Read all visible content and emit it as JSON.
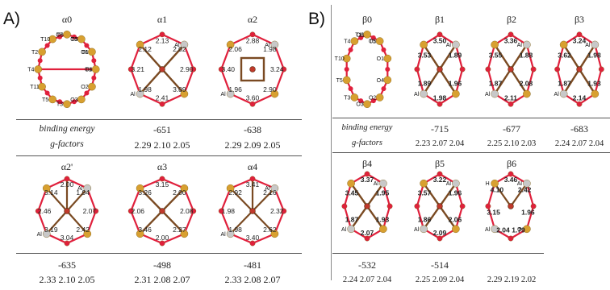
{
  "panel_a": {
    "label": "A)",
    "structures": [
      {
        "title": "α0",
        "distances": [],
        "sites": [
          "O6",
          "O5",
          "O1",
          "O4",
          "O2",
          "O3",
          "T3",
          "T5",
          "T11",
          "T4",
          "T2",
          "T10",
          "T7",
          "T3",
          "T8",
          "T1"
        ],
        "binding_energy": "",
        "g_factors": ""
      },
      {
        "title": "α1",
        "distances": [
          "2.13",
          "2.02",
          "2.90",
          "3.09",
          "2.41",
          "1.98",
          "3.21",
          "2.12"
        ],
        "sites": [
          "Al",
          "Al"
        ],
        "binding_energy": "-651",
        "g_factors": "2.29  2.10  2.05"
      },
      {
        "title": "α2",
        "distances": [
          "2.88",
          "1.98",
          "3.24",
          "2.90",
          "3.60",
          "1.96",
          "3.40",
          "2.06"
        ],
        "sites": [
          "Al",
          "Al"
        ],
        "binding_energy": "-638",
        "g_factors": "2.29  2.09  2.05"
      },
      {
        "title": "α2'",
        "distances": [
          "2.00",
          "1.94",
          "2.07",
          "2.42",
          "3.04",
          "3.19",
          "2.46",
          "3.14"
        ],
        "sites": [
          "Al",
          "Al"
        ],
        "binding_energy": "-635",
        "g_factors": "2.33  2.10  2.05"
      },
      {
        "title": "α3",
        "distances": [
          "3.15",
          "2.00",
          "2.08",
          "2.27",
          "2.00",
          "3.46",
          "2.06",
          "3.26"
        ],
        "sites": [],
        "binding_energy": "-498",
        "g_factors": "2.31  2.08  2.07"
      },
      {
        "title": "α4",
        "distances": [
          "3.41",
          "2.16",
          "2.32",
          "2.62",
          "3.40",
          "1.98",
          "1.98",
          "2.92"
        ],
        "sites": [
          "Al",
          "Al"
        ],
        "binding_energy": "-481",
        "g_factors": "2.33  2.08  2.07"
      }
    ],
    "row_labels": {
      "binding_energy": "binding energy",
      "g_factors": "g-factors"
    }
  },
  "panel_b": {
    "label": "B)",
    "structures": [
      {
        "title": "β0",
        "distances": [],
        "sites": [
          "O6",
          "O5",
          "O1",
          "O4",
          "O2",
          "O3",
          "T3",
          "T5",
          "T10",
          "T4",
          "T11",
          "T1"
        ],
        "binding_energy": "",
        "g_factors": ""
      },
      {
        "title": "β1",
        "distances": [
          "3.50",
          "1.89",
          "1.96",
          "1.98",
          "1.89",
          "3.53"
        ],
        "sites": [
          "Al",
          "Al"
        ],
        "binding_energy": "-715",
        "g_factors": "2.23  2.07  2.04"
      },
      {
        "title": "β2",
        "distances": [
          "3.36",
          "1.88",
          "2.08",
          "2.11",
          "1.87",
          "3.55"
        ],
        "sites": [
          "Al",
          "Al"
        ],
        "binding_energy": "-677",
        "g_factors": "2.25  2.10  2.03"
      },
      {
        "title": "β3",
        "distances": [
          "3.24",
          "1.98",
          "1.93",
          "2.14",
          "1.87",
          "3.62"
        ],
        "sites": [
          "Al",
          "Al"
        ],
        "binding_energy": "-683",
        "g_factors": "2.24  2.07  2.04"
      },
      {
        "title": "β4",
        "distances": [
          "3.37",
          "1.95",
          "1.93",
          "2.07",
          "1.87",
          "3.45"
        ],
        "sites": [
          "Al",
          "Al"
        ],
        "binding_energy": "-532",
        "g_factors": "2.24  2.07  2.04"
      },
      {
        "title": "β5",
        "distances": [
          "3.22",
          "1.96",
          "2.06",
          "2.09",
          "1.86",
          "3.57"
        ],
        "sites": [
          "Al",
          "Al"
        ],
        "binding_energy": "-514",
        "g_factors": "2.25  2.09  2.04"
      },
      {
        "title": "β6",
        "distances": [
          "3.46",
          "2.42",
          "1.96",
          "1.79",
          "2.04",
          "3.15",
          "4.10"
        ],
        "sites": [
          "Al",
          "Al",
          "O",
          "H"
        ],
        "binding_energy": "",
        "g_factors": "2.29  2.19  2.02"
      }
    ],
    "row_labels": {
      "binding_energy": "binding energy",
      "g_factors": "g-factors"
    }
  },
  "colors": {
    "oxygen": "#e0203c",
    "silicon": "#d8a030",
    "aluminum": "#c8c8c8",
    "copper_bond": "#8b5a2b",
    "frame": "#555555"
  }
}
